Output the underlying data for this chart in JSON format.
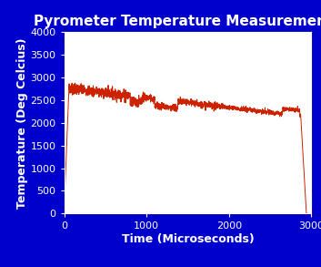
{
  "title": "Pyrometer Temperature Measurements",
  "xlabel": "Time (Microseconds)",
  "ylabel": "Temperature (Deg Celcius)",
  "xlim": [
    0.0,
    3000.0
  ],
  "ylim": [
    0,
    4000
  ],
  "xticks": [
    0.0,
    1000.0,
    2000.0,
    3000.0
  ],
  "yticks": [
    0,
    500,
    1000,
    1500,
    2000,
    2500,
    3000,
    3500,
    4000
  ],
  "bg_color": "#0000CC",
  "plot_bg_color": "#FFFFFF",
  "line_color": "#CC2200",
  "title_color": "#FFFFFF",
  "label_color": "#FFFFFF",
  "tick_color": "#FFFFFF",
  "title_fontsize": 11,
  "label_fontsize": 9,
  "tick_fontsize": 8
}
